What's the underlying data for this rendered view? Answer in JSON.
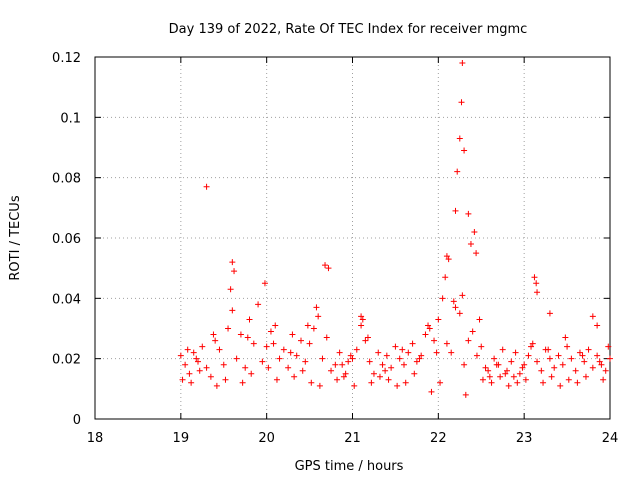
{
  "chart_data": {
    "type": "scatter",
    "title": "Day 139 of 2022, Rate Of TEC Index for receiver mgmc",
    "xlabel": "GPS time / hours",
    "ylabel": "ROTI / TECUs",
    "xlim": [
      18,
      24
    ],
    "ylim": [
      0,
      0.12
    ],
    "xticks": [
      "18",
      "19",
      "20",
      "21",
      "22",
      "23",
      "24"
    ],
    "yticks": [
      "0",
      "0.02",
      "0.04",
      "0.06",
      "0.08",
      "0.1",
      "0.12"
    ],
    "grid": true,
    "marker": "+",
    "color": "#ff0000",
    "series": [
      {
        "name": "ROTI",
        "x": [
          19.0,
          19.05,
          19.1,
          19.15,
          19.2,
          19.25,
          19.3,
          19.35,
          19.4,
          19.45,
          19.5,
          19.55,
          19.6,
          19.65,
          19.7,
          19.75,
          19.8,
          19.85,
          19.9,
          19.95,
          20.0,
          20.05,
          20.1,
          20.15,
          20.2,
          20.25,
          20.3,
          20.35,
          20.4,
          20.45,
          20.5,
          20.55,
          20.6,
          20.65,
          20.7,
          20.75,
          20.8,
          20.85,
          20.9,
          20.95,
          21.0,
          21.05,
          21.1,
          21.15,
          21.2,
          21.25,
          21.3,
          21.35,
          21.4,
          21.45,
          21.5,
          21.55,
          21.6,
          21.65,
          21.7,
          21.75,
          21.8,
          21.85,
          21.9,
          21.95,
          22.0,
          22.05,
          22.1,
          22.15,
          22.2,
          22.25,
          22.3,
          22.35,
          22.4,
          22.45,
          22.5,
          22.55,
          22.6,
          22.65,
          22.7,
          22.75,
          22.8,
          22.85,
          22.9,
          22.95,
          23.0,
          23.05,
          23.1,
          23.15,
          23.2,
          23.25,
          23.3,
          23.35,
          23.4,
          23.45,
          23.5,
          23.55,
          23.6,
          23.65,
          23.7,
          23.75,
          23.8,
          23.85,
          23.9,
          23.95,
          24.0,
          19.3,
          19.6,
          19.62,
          19.98,
          20.68,
          20.72,
          21.1,
          21.12,
          22.1,
          22.12,
          22.2,
          22.22,
          22.25,
          22.27,
          22.28,
          22.3,
          22.35,
          22.38,
          22.42,
          22.44,
          23.12,
          23.14,
          23.15,
          23.3,
          23.8,
          23.85,
          19.02,
          19.12,
          19.22,
          19.42,
          19.52,
          19.72,
          19.82,
          20.02,
          20.12,
          20.32,
          20.42,
          20.52,
          20.62,
          20.82,
          20.92,
          21.02,
          21.22,
          21.32,
          21.42,
          21.52,
          21.62,
          21.72,
          21.92,
          22.02,
          22.32,
          22.52,
          22.62,
          22.72,
          22.82,
          22.92,
          23.02,
          23.22,
          23.32,
          23.42,
          23.52,
          23.62,
          23.72,
          23.92,
          19.08,
          19.18,
          19.38,
          19.58,
          19.78,
          20.08,
          20.28,
          20.48,
          20.58,
          20.88,
          20.98,
          21.18,
          21.38,
          21.58,
          21.78,
          21.88,
          21.98,
          22.08,
          22.18,
          22.28,
          22.48,
          22.58,
          22.68,
          22.78,
          22.88,
          22.98,
          23.08,
          23.28,
          23.48,
          23.68,
          23.88,
          23.98
        ],
        "y": [
          0.021,
          0.018,
          0.015,
          0.022,
          0.019,
          0.024,
          0.017,
          0.014,
          0.026,
          0.023,
          0.018,
          0.03,
          0.036,
          0.02,
          0.028,
          0.017,
          0.033,
          0.025,
          0.038,
          0.019,
          0.024,
          0.029,
          0.031,
          0.02,
          0.023,
          0.017,
          0.028,
          0.021,
          0.026,
          0.019,
          0.025,
          0.03,
          0.034,
          0.02,
          0.027,
          0.016,
          0.018,
          0.022,
          0.014,
          0.019,
          0.02,
          0.023,
          0.031,
          0.026,
          0.019,
          0.015,
          0.022,
          0.018,
          0.021,
          0.017,
          0.024,
          0.02,
          0.018,
          0.022,
          0.025,
          0.019,
          0.021,
          0.028,
          0.03,
          0.026,
          0.033,
          0.04,
          0.025,
          0.022,
          0.037,
          0.035,
          0.018,
          0.026,
          0.029,
          0.021,
          0.024,
          0.017,
          0.014,
          0.02,
          0.018,
          0.023,
          0.016,
          0.019,
          0.022,
          0.015,
          0.018,
          0.021,
          0.025,
          0.019,
          0.016,
          0.023,
          0.02,
          0.017,
          0.021,
          0.018,
          0.024,
          0.02,
          0.016,
          0.022,
          0.019,
          0.023,
          0.017,
          0.021,
          0.018,
          0.016,
          0.02,
          0.077,
          0.052,
          0.049,
          0.045,
          0.051,
          0.05,
          0.034,
          0.033,
          0.054,
          0.053,
          0.069,
          0.082,
          0.093,
          0.105,
          0.118,
          0.089,
          0.068,
          0.058,
          0.062,
          0.055,
          0.047,
          0.045,
          0.042,
          0.035,
          0.034,
          0.031,
          0.013,
          0.012,
          0.016,
          0.011,
          0.013,
          0.012,
          0.015,
          0.017,
          0.013,
          0.014,
          0.016,
          0.012,
          0.011,
          0.013,
          0.015,
          0.011,
          0.012,
          0.014,
          0.013,
          0.011,
          0.012,
          0.015,
          0.009,
          0.012,
          0.008,
          0.013,
          0.012,
          0.014,
          0.011,
          0.012,
          0.013,
          0.012,
          0.014,
          0.011,
          0.013,
          0.012,
          0.014,
          0.013,
          0.023,
          0.02,
          0.028,
          0.043,
          0.027,
          0.025,
          0.022,
          0.031,
          0.037,
          0.018,
          0.021,
          0.027,
          0.016,
          0.023,
          0.02,
          0.031,
          0.022,
          0.047,
          0.039,
          0.041,
          0.033,
          0.016,
          0.018,
          0.015,
          0.014,
          0.017,
          0.024,
          0.023,
          0.027,
          0.021,
          0.019,
          0.024
        ]
      }
    ]
  }
}
